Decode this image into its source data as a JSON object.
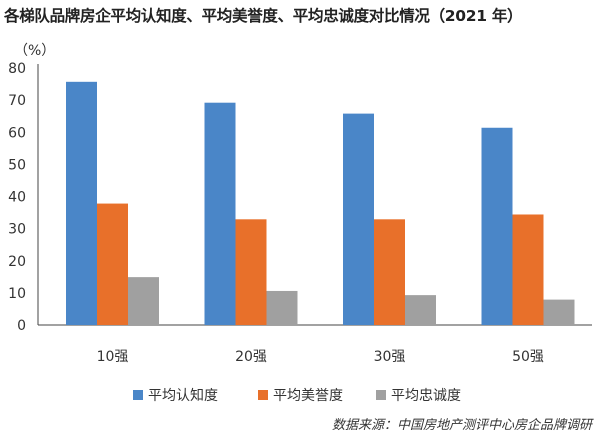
{
  "title": "各梯队品牌房企平均认知度、平均美誉度、平均忠诚度对比情况（2021 年）",
  "unit_label": "（%）",
  "source": "数据来源：中国房地产测评中心房企品牌调研",
  "colors": {
    "认知度": "#4a86c8",
    "美誉度": "#e8702a",
    "忠诚度": "#a0a0a0"
  },
  "chart_data": {
    "type": "bar",
    "title": "各梯队品牌房企平均认知度、平均美誉度、平均忠诚度对比情况（2021 年）",
    "ylabel": "（%）",
    "xlabel": "",
    "ylim": [
      0,
      80
    ],
    "yticks": [
      0,
      10,
      20,
      30,
      40,
      50,
      60,
      70,
      80
    ],
    "categories": [
      "10强",
      "20强",
      "30强",
      "50强"
    ],
    "series": [
      {
        "name": "平均认知度",
        "values": [
          75.7,
          69.2,
          65.8,
          61.4
        ],
        "color": "#4a86c8"
      },
      {
        "name": "平均美誉度",
        "values": [
          37.8,
          32.9,
          32.9,
          34.4
        ],
        "color": "#e8702a"
      },
      {
        "name": "平均忠诚度",
        "values": [
          14.9,
          10.6,
          9.3,
          7.9
        ],
        "color": "#a0a0a0"
      }
    ],
    "grid": false,
    "legend": "bottom"
  }
}
